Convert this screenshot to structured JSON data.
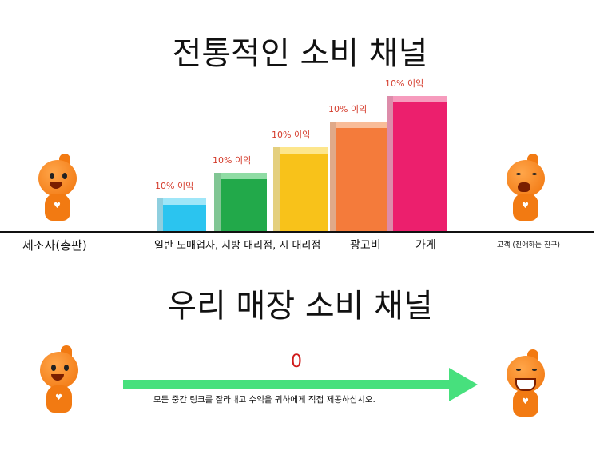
{
  "top": {
    "title": "전통적인 소비 채널",
    "bars": [
      {
        "label": "10% 이익",
        "color": "#2bc4ef",
        "side": "#9fe6f8"
      },
      {
        "label": "10% 이익",
        "color": "#22a94a",
        "side": "#8fdca4"
      },
      {
        "label": "10% 이익",
        "color": "#f8c21a",
        "side": "#fde68c"
      },
      {
        "label": "10% 이익",
        "color": "#f47b3b",
        "side": "#f9bc98"
      },
      {
        "label": "10% 이익",
        "color": "#ec1f6d",
        "side": "#f69bbd"
      }
    ],
    "labels": {
      "manufacturer": "제조사(총판)",
      "wholesale": "일반 도매업자, 지방 대리점, 시 대리점",
      "ads": "광고비",
      "store": "가게",
      "customer": "고객 (친애하는 친구)"
    }
  },
  "bottom": {
    "title": "우리 매장 소비 채널",
    "value": "0",
    "caption": "모든 중간 링크를 잘라내고 수익을 귀하에게 직접 제공하십시오.",
    "arrow_color": "#47e07d",
    "value_color": "#d01c1c"
  }
}
